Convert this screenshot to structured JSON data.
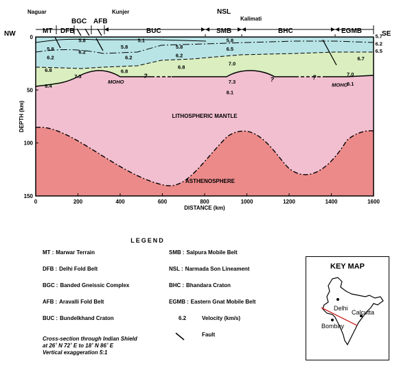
{
  "cross_section": {
    "corner_left": "NW",
    "corner_right": "SE",
    "top_places": [
      {
        "id": "naguar",
        "text": "Naguar"
      },
      {
        "id": "kunjer",
        "text": "Kunjer"
      },
      {
        "id": "nsl",
        "text": "NSL"
      },
      {
        "id": "kalimati",
        "text": "Kalimati"
      }
    ],
    "segments": [
      {
        "id": "mt",
        "text": "MT"
      },
      {
        "id": "bgc",
        "text": "BGC"
      },
      {
        "id": "afb",
        "text": "AFB"
      },
      {
        "id": "dfb",
        "text": "DFB"
      },
      {
        "id": "buc",
        "text": "BUC"
      },
      {
        "id": "smb",
        "text": "SMB"
      },
      {
        "id": "bhc",
        "text": "BHC"
      },
      {
        "id": "egmb",
        "text": "EGMB"
      }
    ],
    "y_axis_label": "DEPTH (km)",
    "x_axis_label": "DISTANCE (km)",
    "x_axis": {
      "min": 0,
      "max": 1600,
      "ticks": [
        0,
        200,
        400,
        600,
        800,
        1000,
        1200,
        1400,
        1600
      ]
    },
    "y_axis": {
      "min": 0,
      "max": 150,
      "ticks": [
        0,
        50,
        100,
        150
      ]
    },
    "zone_labels": {
      "lithosphere": "LITHOSPHERIC MANTLE",
      "asthenosphere": "ASTHENOSPHERE",
      "moho": "MOHO"
    },
    "velocities": [
      {
        "text": "5.8",
        "km": 70,
        "depth": 11
      },
      {
        "text": "6.2",
        "km": 70,
        "depth": 19
      },
      {
        "text": "6.8",
        "km": 60,
        "depth": 31
      },
      {
        "text": "8.4",
        "km": 60,
        "depth": 46
      },
      {
        "text": "5.8",
        "km": 220,
        "depth": 3
      },
      {
        "text": "6.2",
        "km": 220,
        "depth": 14
      },
      {
        "text": "7.3",
        "km": 200,
        "depth": 37
      },
      {
        "text": "5.1",
        "km": 500,
        "depth": 3
      },
      {
        "text": "5.8",
        "km": 420,
        "depth": 9
      },
      {
        "text": "5.8",
        "km": 680,
        "depth": 9
      },
      {
        "text": "6.2",
        "km": 440,
        "depth": 19
      },
      {
        "text": "6.2",
        "km": 680,
        "depth": 17
      },
      {
        "text": "6.8",
        "km": 420,
        "depth": 32
      },
      {
        "text": "6.8",
        "km": 690,
        "depth": 28
      },
      {
        "text": "5.8",
        "km": 920,
        "depth": 3
      },
      {
        "text": "6.5",
        "km": 920,
        "depth": 11
      },
      {
        "text": "7.0",
        "km": 930,
        "depth": 25
      },
      {
        "text": "7.3",
        "km": 930,
        "depth": 42
      },
      {
        "text": "8.1",
        "km": 920,
        "depth": 52
      },
      {
        "text": "5.7",
        "km": 1625,
        "depth": -1
      },
      {
        "text": "6.2",
        "km": 1625,
        "depth": 6
      },
      {
        "text": "6.5",
        "km": 1625,
        "depth": 13
      },
      {
        "text": "6.7",
        "km": 1540,
        "depth": 20
      },
      {
        "text": "7.0",
        "km": 1490,
        "depth": 35
      },
      {
        "text": "8.1",
        "km": 1490,
        "depth": 44
      }
    ],
    "question_marks": [
      {
        "text": "?",
        "km": 520,
        "depth": 37
      },
      {
        "text": "?",
        "km": 1120,
        "depth": 40
      },
      {
        "text": "?",
        "km": 1320,
        "depth": 38
      }
    ],
    "moho_positions": [
      {
        "km": 380,
        "depth": 42
      },
      {
        "km": 1440,
        "depth": 45
      }
    ]
  },
  "legend": {
    "title": "LEGEND",
    "left": [
      {
        "abbr": "MT",
        "text": "Marwar Terrain"
      },
      {
        "abbr": "DFB",
        "text": "Delhi Fold Belt"
      },
      {
        "abbr": "BGC",
        "text": "Banded Gneissic Complex"
      },
      {
        "abbr": "AFB",
        "text": "Aravalli Fold Belt"
      },
      {
        "abbr": "BUC",
        "text": "Bundelkhand Craton"
      }
    ],
    "right": [
      {
        "abbr": "SMB",
        "text": "Salpura Mobile Belt"
      },
      {
        "abbr": "NSL",
        "text": "Narmada Son Lineament"
      },
      {
        "abbr": "BHC",
        "text": "Bhandara Craton"
      },
      {
        "abbr": "EGMB",
        "text": "Eastern Gnat Mobile Belt"
      }
    ],
    "velocity_symbol": "6.2",
    "velocity_text": "Velocity (km/s)",
    "fault_text": "Fault"
  },
  "caption": {
    "line1": "Cross-section through Indian Shield",
    "line2": "at 26˚ N 72˚ E to 18˚ N 86˚ E",
    "line3": "Vertical exaggeration 5:1"
  },
  "key_map": {
    "title": "KEY MAP",
    "cities": [
      {
        "id": "delhi",
        "text": "Delhi"
      },
      {
        "id": "calcutta",
        "text": "Calcutta"
      },
      {
        "id": "bombay",
        "text": "Bombay"
      }
    ]
  },
  "colors": {
    "upper_crust": "#b8e4e6",
    "lower_crust": "#daeebf",
    "lithospheric_mantle": "#f2bfd0",
    "asthenosphere": "#ec8a8a",
    "section_line": "#cc2222"
  }
}
